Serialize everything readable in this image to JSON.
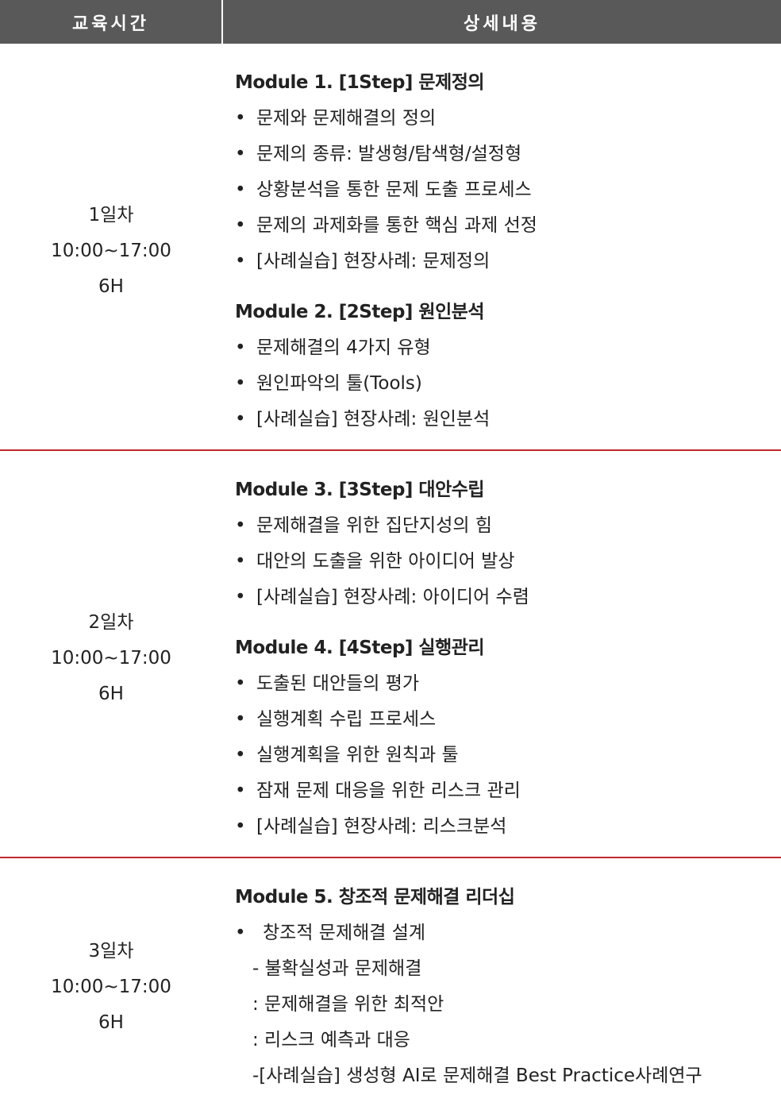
{
  "header": {
    "columns": [
      "교육시간",
      "상세내용"
    ]
  },
  "table": {
    "rows": [
      {
        "time": [
          "1일차",
          "10:00~17:00",
          "6H"
        ],
        "modules": [
          {
            "title": "Module 1. [1Step] 문제정의",
            "items": [
              "문제와 문제해결의 정의",
              "문제의 종류: 발생형/탐색형/설정형",
              "상황분석을 통한 문제 도출 프로세스",
              "문제의 과제화를 통한 핵심 과제 선정",
              "[사례실습] 현장사례: 문제정의"
            ]
          },
          {
            "title": "Module 2. [2Step] 원인분석",
            "items": [
              "문제해결의 4가지 유형",
              "원인파악의 툴(Tools)",
              "[사례실습] 현장사례: 원인분석"
            ]
          }
        ]
      },
      {
        "time": [
          "2일차",
          "10:00~17:00",
          "6H"
        ],
        "modules": [
          {
            "title": "Module 3. [3Step] 대안수립",
            "items": [
              "문제해결을 위한 집단지성의 힘",
              "대안의 도출을 위한 아이디어 발상",
              "[사례실습] 현장사례: 아이디어 수렴"
            ]
          },
          {
            "title": "Module 4. [4Step] 실행관리",
            "items": [
              "도출된 대안들의 평가",
              "실행계획 수립 프로세스",
              "실행계획을 위한 원칙과 툴",
              "잠재 문제 대응을 위한 리스크 관리",
              "[사례실습] 현장사례: 리스크분석"
            ]
          }
        ]
      },
      {
        "time": [
          "3일차",
          "10:00~17:00",
          "6H"
        ],
        "modules": [
          {
            "title": "Module 5. 창조적 문제해결 리더십",
            "items": [
              "창조적 문제해결 설계"
            ],
            "subitems": [
              "- 불확실성과 문제해결",
              ": 문제해결을 위한 최적안",
              ": 리스크 예측과 대응",
              "-[사례실습] 생성형 AI로 문제해결 Best Practice사례연구"
            ]
          }
        ]
      }
    ]
  }
}
